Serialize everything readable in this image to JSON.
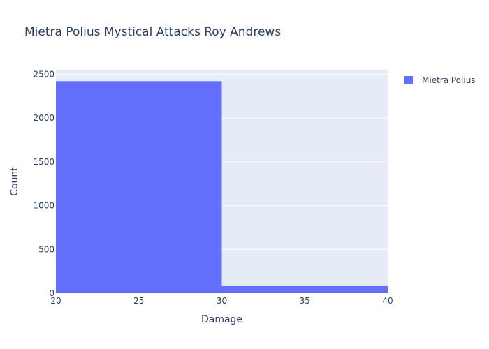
{
  "chart_data": {
    "type": "bar",
    "title": "Mietra Polius Mystical Attacks Roy Andrews",
    "xlabel": "Damage",
    "ylabel": "Count",
    "bins": [
      {
        "x0": 20,
        "x1": 30,
        "count": 2420
      },
      {
        "x0": 30,
        "x1": 40,
        "count": 80
      }
    ],
    "xlim": [
      20,
      40
    ],
    "ylim": [
      0,
      2550
    ],
    "xticks": [
      20,
      25,
      30,
      35,
      40
    ],
    "yticks": [
      0,
      500,
      1000,
      1500,
      2000,
      2500
    ],
    "grid": true,
    "series": [
      {
        "name": "Mietra Polius",
        "color": "#636efa"
      }
    ],
    "legend_position": "top-right",
    "colors": {
      "plot_background": "#e5ecf6",
      "grid": "#ffffff",
      "text": "#2a3f5f"
    }
  }
}
